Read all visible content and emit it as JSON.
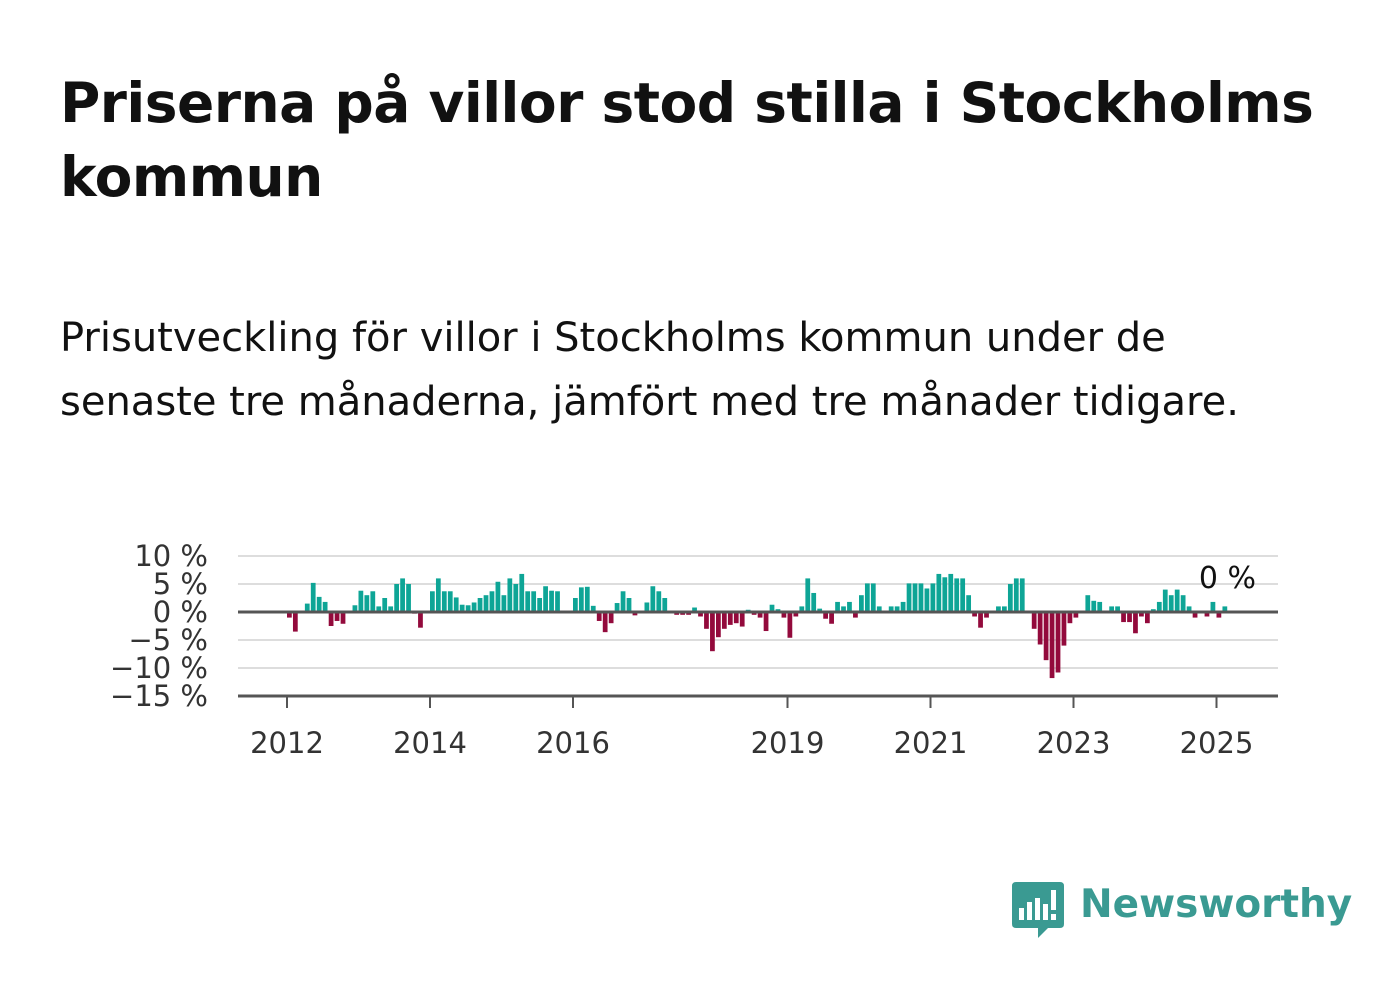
{
  "title": "Priserna på villor stod stilla i Stockholms kommun",
  "subtitle": "Prisutveckling för villor i Stockholms kommun under de senaste tre månaderna, jämfört med tre månader tidigare.",
  "brand": {
    "name": "Newsworthy",
    "color": "#3a9a92"
  },
  "colors": {
    "positive": "#0ea596",
    "negative": "#930a3c",
    "axis": "#555555",
    "grid": "#dddddd"
  },
  "chart_data": {
    "type": "bar",
    "title": "",
    "xlabel": "",
    "ylabel": "",
    "ylim": [
      -15,
      10
    ],
    "yticks": [
      10,
      5,
      0,
      -5,
      -10,
      -15
    ],
    "ytick_labels": [
      "10 %",
      "5 %",
      "0 %",
      "−5 %",
      "−10 %",
      "−15 %"
    ],
    "xticks": [
      "2012",
      "2014",
      "2016",
      "2019",
      "2021",
      "2023",
      "2025"
    ],
    "x_start_year": 2012,
    "last_label": "0 %",
    "grid": true,
    "series": [
      {
        "values": [
          -1,
          -3.5,
          0,
          1.5,
          5.2,
          2.7,
          1.8,
          -2.5,
          -1.6,
          -2.1,
          0.1,
          1.2,
          3.8,
          3,
          3.7,
          1,
          2.5,
          1,
          5,
          6,
          5,
          -0.3,
          -2.8,
          0,
          3.7,
          6,
          3.7,
          3.7,
          2.6,
          1.3,
          1.2,
          1.7,
          2.5,
          3,
          3.7,
          5.4,
          3,
          6,
          5,
          6.8,
          3.7,
          3.7,
          2.5,
          4.6,
          3.8,
          3.7,
          0,
          0,
          2.5,
          4.4,
          4.5,
          1.1,
          -1.6,
          -3.6,
          -2,
          1.6,
          3.7,
          2.5,
          -0.6,
          0,
          1.7,
          4.6,
          3.7,
          2.5,
          -0.2,
          -0.5,
          -0.5,
          -0.5,
          0.8,
          -0.8,
          -3,
          -7,
          -4.5,
          -3,
          -2.3,
          -2,
          -2.6,
          0.4,
          -0.5,
          -1,
          -3.4,
          1.3,
          0.5,
          -1,
          -4.6,
          -0.8,
          1,
          6,
          3.4,
          0.6,
          -1.2,
          -2.1,
          1.8,
          1,
          1.8,
          -1,
          3,
          5.1,
          5.1,
          1,
          0.2,
          1,
          1,
          1.8,
          5.1,
          5.1,
          5.1,
          4.2,
          5.1,
          6.8,
          6.2,
          6.8,
          6,
          6,
          3,
          -0.8,
          -2.8,
          -1,
          0.2,
          1,
          1,
          5,
          6,
          6,
          0,
          -3,
          -5.8,
          -8.6,
          -11.8,
          -10.8,
          -6,
          -2,
          -1,
          -0.2,
          3,
          2,
          1.8,
          0,
          1,
          1,
          -1.8,
          -1.8,
          -3.8,
          -0.8,
          -2,
          0.5,
          1.8,
          4,
          3,
          4,
          3,
          1,
          -1,
          0,
          -0.8,
          1.8,
          -1,
          1,
          0
        ]
      }
    ]
  }
}
